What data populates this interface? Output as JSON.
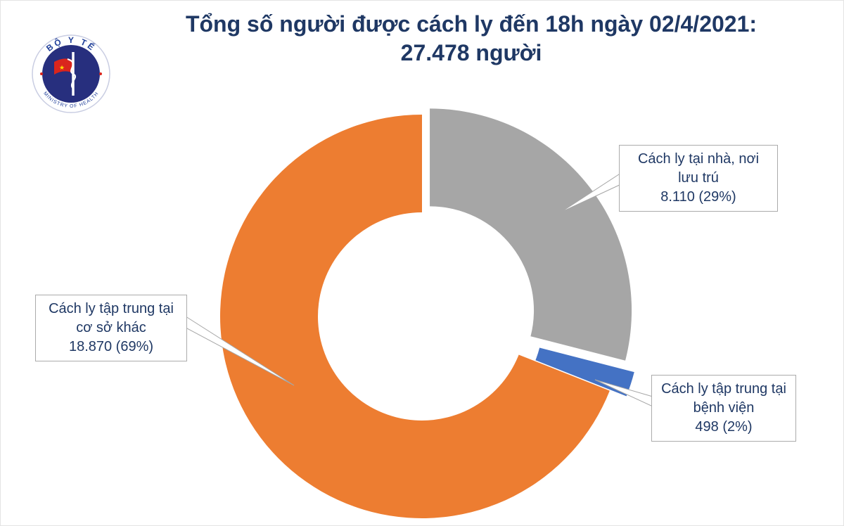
{
  "header": {
    "title_line1": "Tổng số người được cách ly đến 18h ngày 02/4/2021:",
    "title_line2": "27.478 người"
  },
  "logo": {
    "top_text": "BỘ Y TẾ",
    "bottom_text": "MINISTRY OF HEALTH"
  },
  "chart_data": {
    "type": "pie",
    "donut": true,
    "title": "Tổng số người được cách ly đến 18h ngày 02/4/2021: 27.478 người",
    "total_label": "27.478 người",
    "legend_position": "callouts",
    "slices": [
      {
        "name": "Cách ly tại nhà, nơi lưu trú",
        "value": 8110,
        "value_label": "8.110",
        "percent": 29,
        "color": "#A6A6A6"
      },
      {
        "name": "Cách ly tập trung tại bệnh viện",
        "value": 498,
        "value_label": "498",
        "percent": 2,
        "color": "#4472C4"
      },
      {
        "name": "Cách ly tập trung tại cơ sở khác",
        "value": 18870,
        "value_label": "18.870",
        "percent": 69,
        "color": "#ED7D31"
      }
    ]
  },
  "callouts": [
    {
      "lines": [
        "Cách ly tại nhà, nơi",
        "lưu trú",
        "8.110 (29%)"
      ]
    },
    {
      "lines": [
        "Cách ly tập trung tại",
        "cơ sở khác",
        "18.870 (69%)"
      ]
    },
    {
      "lines": [
        "Cách ly tập trung tại",
        "bệnh viện",
        "498 (2%)"
      ]
    }
  ],
  "colors": {
    "title_text": "#1F3864",
    "slice_home": "#A6A6A6",
    "slice_hospital": "#4472C4",
    "slice_other": "#ED7D31"
  }
}
